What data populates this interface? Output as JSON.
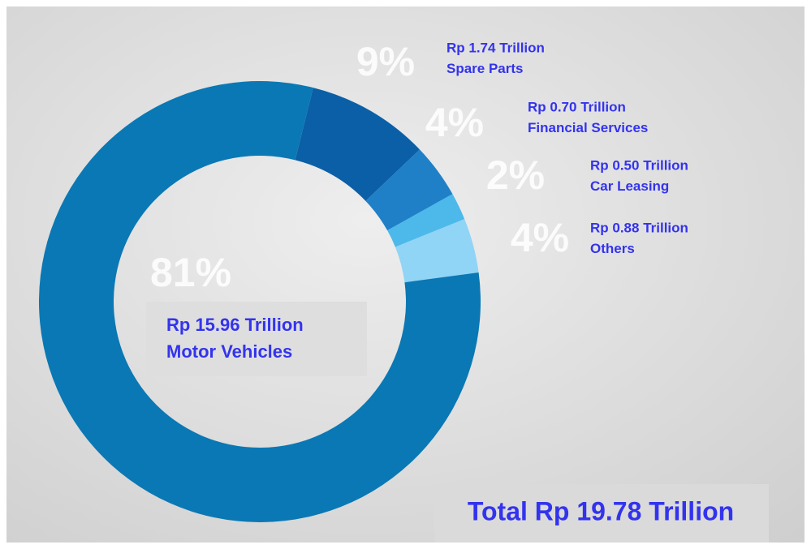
{
  "chart_data": {
    "type": "pie",
    "donut": true,
    "categories": [
      "Spare Parts",
      "Financial Services",
      "Car Leasing",
      "Others",
      "Motor Vehicles"
    ],
    "values": [
      9,
      4,
      2,
      4,
      81
    ],
    "value_labels": [
      "9%",
      "4%",
      "2%",
      "4%",
      "81%"
    ],
    "amounts": [
      "Rp 1.74 Trillion",
      "Rp 0.70 Trillion",
      "Rp 0.50 Trillion",
      "Rp 0.88 Trillion",
      "Rp 15.96 Trillion"
    ],
    "colors": [
      "#0b5fa6",
      "#1f80c8",
      "#4cb9ea",
      "#90d4f6",
      "#0a78b4"
    ],
    "total": "Total Rp 19.78 Trillion"
  }
}
